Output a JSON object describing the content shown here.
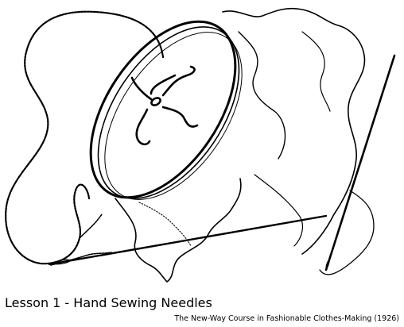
{
  "caption": {
    "title": "Lesson 1 - Hand Sewing Needles",
    "source": "The New-Way Course in Fashionable Clothes-Making (1926)"
  },
  "colors": {
    "ink": "#000000",
    "paper": "#ffffff"
  },
  "illustration": {
    "subject": "embroidery hoop with fabric, loose thread and two hand sewing needles"
  }
}
